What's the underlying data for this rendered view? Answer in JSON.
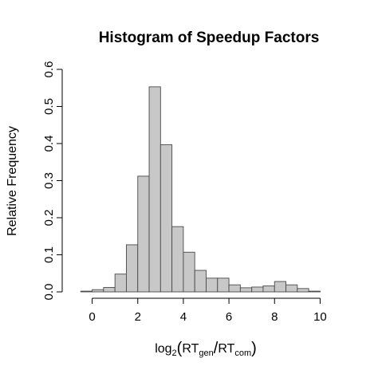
{
  "chart_data": {
    "type": "bar",
    "title": "Histogram of Speedup Factors",
    "ylabel": "Relative Frequency",
    "xlabel": {
      "base": "log",
      "base_sub": "2",
      "open": "(",
      "num": "RT",
      "num_sub": "gen",
      "slash": "/",
      "den": "RT",
      "den_sub": "com",
      "close": ")"
    },
    "xlim": [
      -1,
      11
    ],
    "ylim": [
      0,
      0.6
    ],
    "x_ticks": [
      0,
      2,
      4,
      6,
      8,
      10
    ],
    "y_ticks": [
      0.0,
      0.1,
      0.2,
      0.3,
      0.4,
      0.5,
      0.6
    ],
    "x_tick_labels": [
      "0",
      "2",
      "4",
      "6",
      "8",
      "10"
    ],
    "y_tick_labels": [
      "0.0",
      "0.1",
      "0.2",
      "0.3",
      "0.4",
      "0.5",
      "0.6"
    ],
    "bin_width": 0.5,
    "bin_starts": [
      -0.5,
      0.0,
      0.5,
      1.0,
      1.5,
      2.0,
      2.5,
      3.0,
      3.5,
      4.0,
      4.5,
      5.0,
      5.5,
      6.0,
      6.5,
      7.0,
      7.5,
      8.0,
      8.5,
      9.0,
      9.5
    ],
    "values": [
      0.002,
      0.006,
      0.012,
      0.048,
      0.127,
      0.312,
      0.553,
      0.397,
      0.176,
      0.107,
      0.058,
      0.037,
      0.037,
      0.019,
      0.011,
      0.013,
      0.016,
      0.028,
      0.019,
      0.009,
      0.002
    ],
    "grid": false,
    "legend": "none",
    "bar_color": "#c8c8c8",
    "edge_color": "#4a4a4a"
  }
}
